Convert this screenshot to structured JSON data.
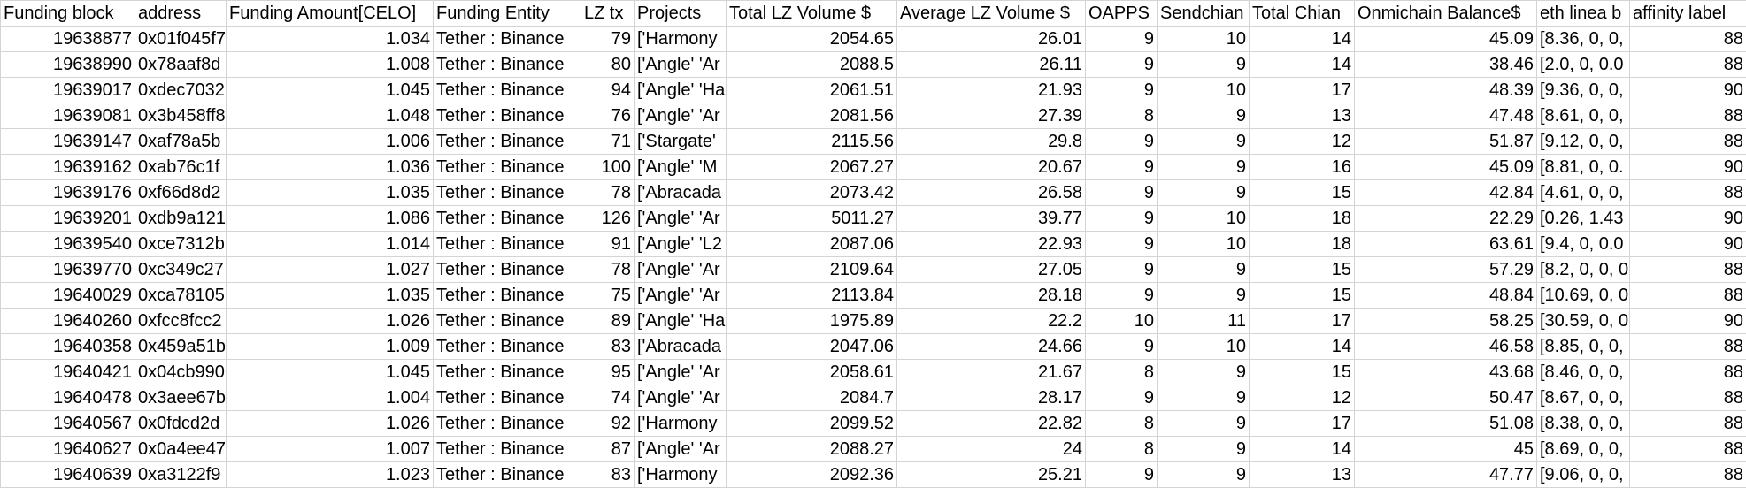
{
  "columns": [
    "Funding block",
    "address",
    "Funding Amount[CELO]",
    "Funding Entity",
    "LZ tx",
    "Projects",
    "Total LZ Volume $",
    "Average LZ Volume $",
    "OAPPS",
    "Sendchian",
    "Total Chian",
    "Onmichain Balance$",
    "eth linea b",
    "affinity label"
  ],
  "rows": [
    [
      "19638877",
      "0x01f045f7",
      "1.034",
      "Tether : Binance",
      "79",
      "['Harmony",
      "2054.65",
      "26.01",
      "9",
      "10",
      "14",
      "45.09",
      "[8.36, 0, 0,",
      "88"
    ],
    [
      "19638990",
      "0x78aaf8d",
      "1.008",
      "Tether : Binance",
      "80",
      "['Angle' 'Ar",
      "2088.5",
      "26.11",
      "9",
      "9",
      "14",
      "38.46",
      "[2.0, 0, 0.0",
      "88"
    ],
    [
      "19639017",
      "0xdec7032",
      "1.045",
      "Tether : Binance",
      "94",
      "['Angle' 'Ha",
      "2061.51",
      "21.93",
      "9",
      "10",
      "17",
      "48.39",
      "[9.36, 0, 0,",
      "90"
    ],
    [
      "19639081",
      "0x3b458ff8",
      "1.048",
      "Tether : Binance",
      "76",
      "['Angle' 'Ar",
      "2081.56",
      "27.39",
      "8",
      "9",
      "13",
      "47.48",
      "[8.61, 0, 0,",
      "88"
    ],
    [
      "19639147",
      "0xaf78a5b",
      "1.006",
      "Tether : Binance",
      "71",
      "['Stargate'",
      "2115.56",
      "29.8",
      "9",
      "9",
      "12",
      "51.87",
      "[9.12, 0, 0,",
      "88"
    ],
    [
      "19639162",
      "0xab76c1f",
      "1.036",
      "Tether : Binance",
      "100",
      "['Angle' 'M",
      "2067.27",
      "20.67",
      "9",
      "9",
      "16",
      "45.09",
      "[8.81, 0, 0.",
      "90"
    ],
    [
      "19639176",
      "0xf66d8d2",
      "1.035",
      "Tether : Binance",
      "78",
      "['Abracada",
      "2073.42",
      "26.58",
      "9",
      "9",
      "15",
      "42.84",
      "[4.61, 0, 0,",
      "88"
    ],
    [
      "19639201",
      "0xdb9a121",
      "1.086",
      "Tether : Binance",
      "126",
      "['Angle' 'Ar",
      "5011.27",
      "39.77",
      "9",
      "10",
      "18",
      "22.29",
      "[0.26, 1.43",
      "90"
    ],
    [
      "19639540",
      "0xce7312b",
      "1.014",
      "Tether : Binance",
      "91",
      "['Angle' 'L2",
      "2087.06",
      "22.93",
      "9",
      "10",
      "18",
      "63.61",
      "[9.4, 0, 0.0",
      "90"
    ],
    [
      "19639770",
      "0xc349c27",
      "1.027",
      "Tether : Binance",
      "78",
      "['Angle' 'Ar",
      "2109.64",
      "27.05",
      "9",
      "9",
      "15",
      "57.29",
      "[8.2, 0, 0, 0",
      "88"
    ],
    [
      "19640029",
      "0xca78105",
      "1.035",
      "Tether : Binance",
      "75",
      "['Angle' 'Ar",
      "2113.84",
      "28.18",
      "9",
      "9",
      "15",
      "48.84",
      "[10.69, 0, 0",
      "88"
    ],
    [
      "19640260",
      "0xfcc8fcc2",
      "1.026",
      "Tether : Binance",
      "89",
      "['Angle' 'Ha",
      "1975.89",
      "22.2",
      "10",
      "11",
      "17",
      "58.25",
      "[30.59, 0, 0",
      "90"
    ],
    [
      "19640358",
      "0x459a51b",
      "1.009",
      "Tether : Binance",
      "83",
      "['Abracada",
      "2047.06",
      "24.66",
      "9",
      "10",
      "14",
      "46.58",
      "[8.85, 0, 0,",
      "88"
    ],
    [
      "19640421",
      "0x04cb990",
      "1.045",
      "Tether : Binance",
      "95",
      "['Angle' 'Ar",
      "2058.61",
      "21.67",
      "8",
      "9",
      "15",
      "43.68",
      "[8.46, 0, 0,",
      "88"
    ],
    [
      "19640478",
      "0x3aee67b",
      "1.004",
      "Tether : Binance",
      "74",
      "['Angle' 'Ar",
      "2084.7",
      "28.17",
      "9",
      "9",
      "12",
      "50.47",
      "[8.67, 0, 0,",
      "88"
    ],
    [
      "19640567",
      "0x0fdcd2d",
      "1.026",
      "Tether : Binance",
      "92",
      "['Harmony",
      "2099.52",
      "22.82",
      "8",
      "9",
      "17",
      "51.08",
      "[8.38, 0, 0,",
      "88"
    ],
    [
      "19640627",
      "0x0a4ee47",
      "1.007",
      "Tether : Binance",
      "87",
      "['Angle' 'Ar",
      "2088.27",
      "24",
      "8",
      "9",
      "14",
      "45",
      "[8.69, 0, 0,",
      "88"
    ],
    [
      "19640639",
      "0xa3122f9",
      "1.023",
      "Tether : Binance",
      "83",
      "['Harmony",
      "2092.36",
      "25.21",
      "9",
      "9",
      "13",
      "47.77",
      "[9.06, 0, 0,",
      "88"
    ]
  ]
}
